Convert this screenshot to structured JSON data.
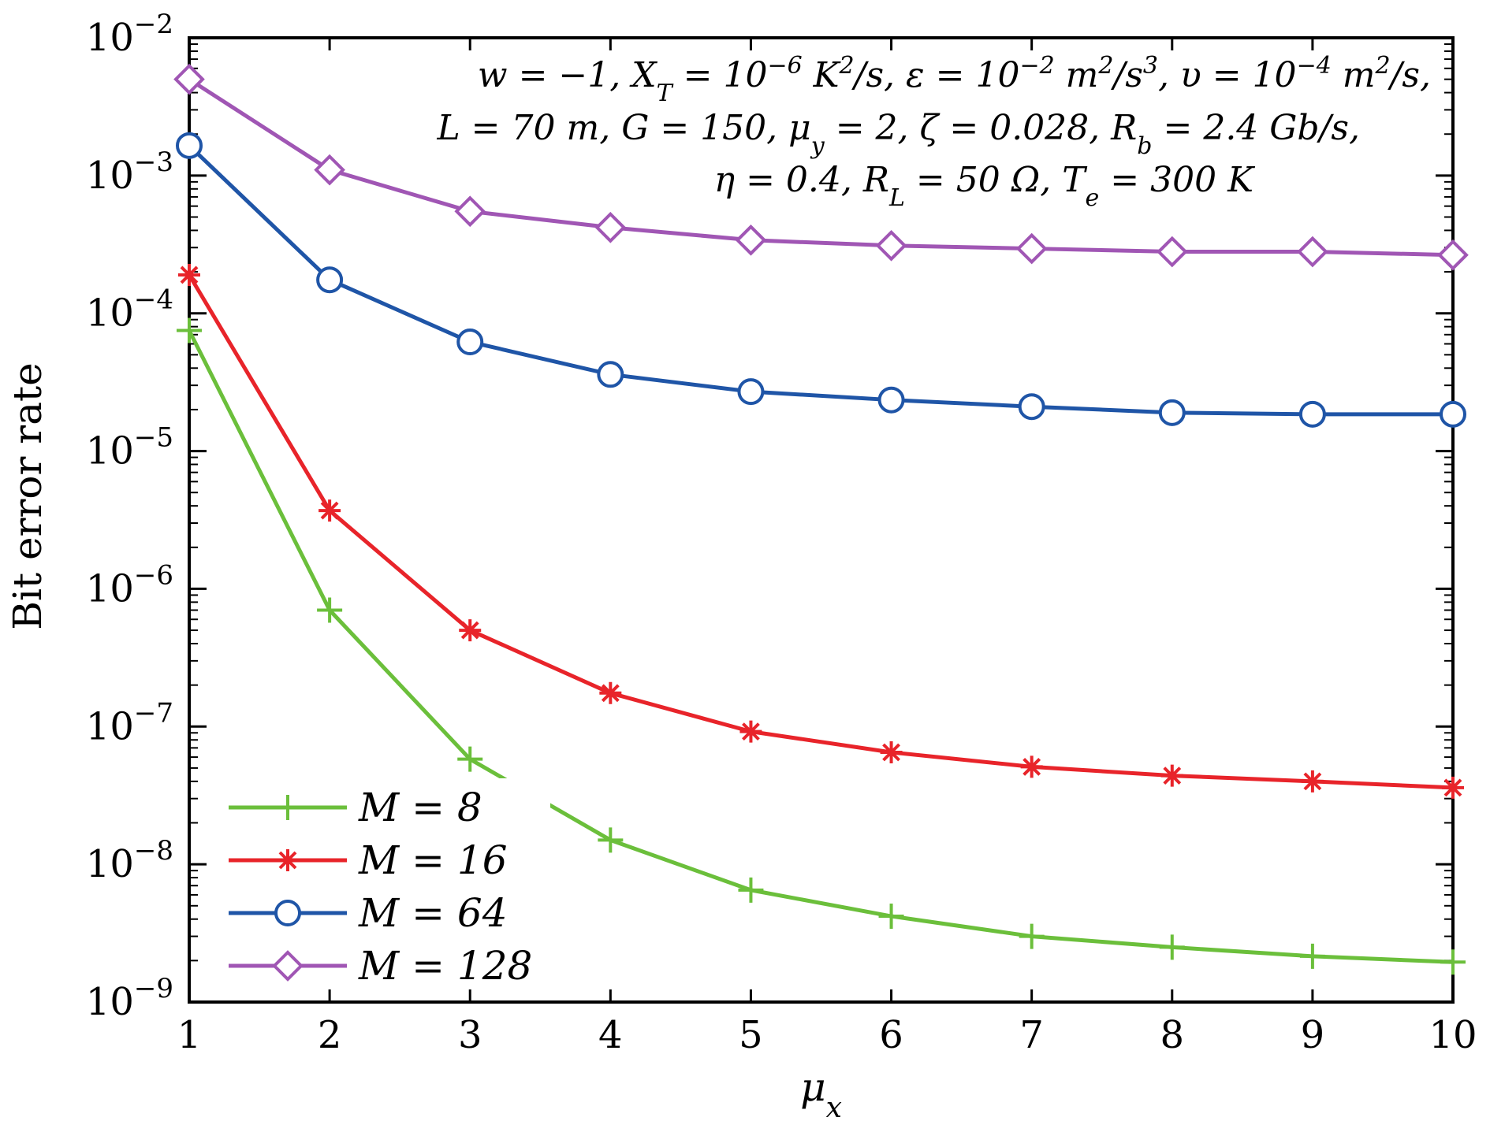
{
  "chart_data": {
    "type": "line",
    "y_scale": "log",
    "xlabel": "μx",
    "ylabel": "Bit error rate",
    "xlim": [
      1,
      10
    ],
    "ylim": [
      1e-09,
      0.01
    ],
    "x_ticks": [
      "1",
      "2",
      "3",
      "4",
      "5",
      "6",
      "7",
      "8",
      "9",
      "10"
    ],
    "y_ticks": [
      {
        "value": 0.01,
        "base": "10",
        "exp": "−2"
      },
      {
        "value": 0.001,
        "base": "10",
        "exp": "−3"
      },
      {
        "value": 0.0001,
        "base": "10",
        "exp": "−4"
      },
      {
        "value": 1e-05,
        "base": "10",
        "exp": "−5"
      },
      {
        "value": 1e-06,
        "base": "10",
        "exp": "−6"
      },
      {
        "value": 1e-07,
        "base": "10",
        "exp": "−7"
      },
      {
        "value": 1e-08,
        "base": "10",
        "exp": "−8"
      },
      {
        "value": 1e-09,
        "base": "10",
        "exp": "−9"
      }
    ],
    "grid": false,
    "legend_position": "bottom-left",
    "annotation_lines": [
      "w = −1, XT = 10−6 K2/s, ε = 10−2 m2/s3, υ = 10−4 m2/s,",
      "L = 70 m,  G = 150, μy = 2, ζ = 0.028, Rb = 2.4 Gb/s,",
      "η = 0.4, RL = 50 Ω, Te = 300 K"
    ],
    "x": [
      1,
      2,
      3,
      4,
      5,
      6,
      7,
      8,
      9,
      10
    ],
    "series": [
      {
        "name": "M = 8",
        "marker": "plus",
        "color": "#6bbf3b",
        "values": [
          7.5e-05,
          7e-07,
          5.8e-08,
          1.5e-08,
          6.5e-09,
          4.2e-09,
          3e-09,
          2.5e-09,
          2.15e-09,
          1.95e-09
        ]
      },
      {
        "name": "M = 16",
        "marker": "asterisk",
        "color": "#e8242a",
        "values": [
          0.00019,
          3.7e-06,
          5e-07,
          1.75e-07,
          9.2e-08,
          6.5e-08,
          5.1e-08,
          4.4e-08,
          4e-08,
          3.6e-08
        ]
      },
      {
        "name": "M = 64",
        "marker": "circle",
        "color": "#1f55a7",
        "values": [
          0.00165,
          0.000175,
          6.2e-05,
          3.6e-05,
          2.7e-05,
          2.35e-05,
          2.1e-05,
          1.9e-05,
          1.85e-05,
          1.85e-05
        ]
      },
      {
        "name": "M = 128",
        "marker": "diamond",
        "color": "#a056b4",
        "values": [
          0.005,
          0.0011,
          0.00055,
          0.00042,
          0.00034,
          0.00031,
          0.000295,
          0.00028,
          0.00028,
          0.000265
        ]
      }
    ]
  }
}
